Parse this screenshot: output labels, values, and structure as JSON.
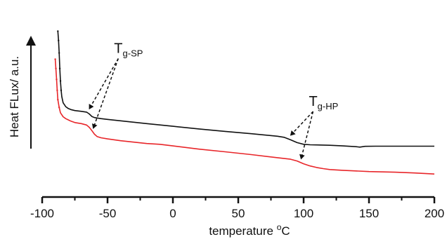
{
  "chart_data": {
    "type": "line",
    "title": "",
    "xlabel_main": "temperature ",
    "xlabel_unit_super": "o",
    "xlabel_unit": "C",
    "ylabel": "Heat FLux/ a.u.",
    "xlim": [
      -100,
      200
    ],
    "xticks": [
      -100,
      -50,
      0,
      50,
      100,
      150,
      200
    ],
    "xtick_labels": [
      "-100",
      "-50",
      "0",
      "50",
      "100",
      "150",
      "200"
    ],
    "y_units": "a.u. (arbitrary, relative heat flux)",
    "ylim": [
      0,
      100
    ],
    "yticks": false,
    "grid": false,
    "legend": "none",
    "y_axis_arrow": true,
    "series": [
      {
        "color": "#111111",
        "x": [
          -88,
          -87.5,
          -87,
          -86.5,
          -86,
          -85.5,
          -85,
          -84,
          -82,
          -80,
          -78,
          -75,
          -70,
          -66,
          -64,
          -62,
          -60,
          -55,
          -50,
          -40,
          -20,
          0,
          20,
          40,
          60,
          80,
          85,
          90,
          95,
          100,
          105,
          110,
          120,
          130,
          140,
          143,
          147,
          155,
          170,
          200
        ],
        "y": [
          98,
          92,
          84,
          74,
          66,
          60,
          56,
          52,
          49.5,
          48.3,
          47.6,
          47,
          46.5,
          46,
          44.8,
          43.2,
          42.5,
          41.8,
          41.3,
          40.4,
          38.6,
          36.9,
          35.2,
          33.6,
          32.1,
          30.5,
          29.8,
          28.2,
          26.4,
          25.3,
          25.0,
          24.9,
          24.7,
          24.3,
          23.8,
          23.5,
          24.0,
          24.1,
          24.1,
          24.1
        ]
      },
      {
        "color": "#e8262a",
        "x": [
          -90,
          -89.5,
          -89,
          -88.5,
          -88,
          -87,
          -86,
          -84,
          -82,
          -80,
          -78,
          -75,
          -70,
          -66,
          -64,
          -62,
          -60,
          -58,
          -55,
          -50,
          -40,
          -20,
          -10,
          0,
          20,
          40,
          60,
          80,
          90,
          95,
          100,
          105,
          110,
          115,
          120,
          130,
          140,
          150,
          170,
          185,
          200
        ],
        "y": [
          80,
          74,
          67,
          60,
          54,
          49,
          45.6,
          43,
          41.8,
          41,
          40.2,
          39.3,
          38.6,
          37.7,
          36.2,
          34.1,
          31.8,
          30.3,
          29.5,
          28.8,
          27.6,
          25.8,
          25.3,
          24.3,
          22.2,
          20.5,
          18.7,
          16.7,
          15.7,
          14.6,
          12.8,
          11.4,
          10.4,
          9.7,
          9.1,
          8.6,
          8.2,
          7.8,
          7.4,
          6.9,
          6.2
        ]
      }
    ],
    "annotations": [
      {
        "main": "T",
        "sub": "g-SP",
        "text_x": -45,
        "text_y": 84,
        "targets": [
          {
            "x": -65,
            "y": 46.3
          },
          {
            "x": -62,
            "y": 33.8
          }
        ]
      },
      {
        "main": "T",
        "sub": "g-HP",
        "text_x": 104,
        "text_y": 50,
        "targets": [
          {
            "x": 89,
            "y": 29.3
          },
          {
            "x": 97,
            "y": 14.2
          }
        ]
      }
    ]
  }
}
